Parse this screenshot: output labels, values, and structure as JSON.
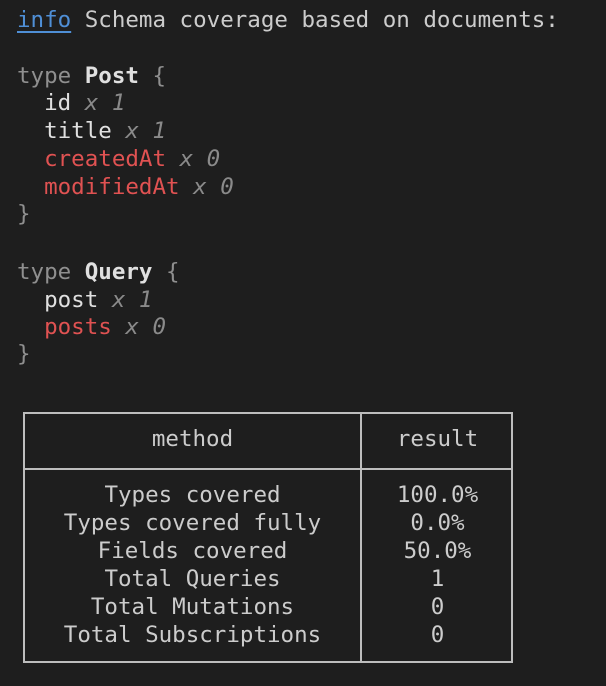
{
  "header": {
    "level": "info",
    "message": "Schema coverage based on documents:"
  },
  "types": [
    {
      "keyword": "type",
      "name": "Post",
      "fields": [
        {
          "name": "id",
          "count": "x 1",
          "covered": true
        },
        {
          "name": "title",
          "count": "x 1",
          "covered": true
        },
        {
          "name": "createdAt",
          "count": "x 0",
          "covered": false
        },
        {
          "name": "modifiedAt",
          "count": "x 0",
          "covered": false
        }
      ]
    },
    {
      "keyword": "type",
      "name": "Query",
      "fields": [
        {
          "name": "post",
          "count": "x 1",
          "covered": true
        },
        {
          "name": "posts",
          "count": "x 0",
          "covered": false
        }
      ]
    }
  ],
  "braces": {
    "open": "{",
    "close": "}"
  },
  "table": {
    "headers": [
      "method",
      "result"
    ],
    "rows": [
      [
        "Types covered",
        "100.0%"
      ],
      [
        "Types covered fully",
        "0.0%"
      ],
      [
        "Fields covered",
        "50.0%"
      ],
      [
        "Total Queries",
        "1"
      ],
      [
        "Total Mutations",
        "0"
      ],
      [
        "Total Subscriptions",
        "0"
      ]
    ]
  },
  "colors": {
    "background": "#1e1e1e",
    "text": "#cccccc",
    "info": "#4f8fd6",
    "uncovered": "#e05252",
    "count": "#8a8a8a"
  }
}
